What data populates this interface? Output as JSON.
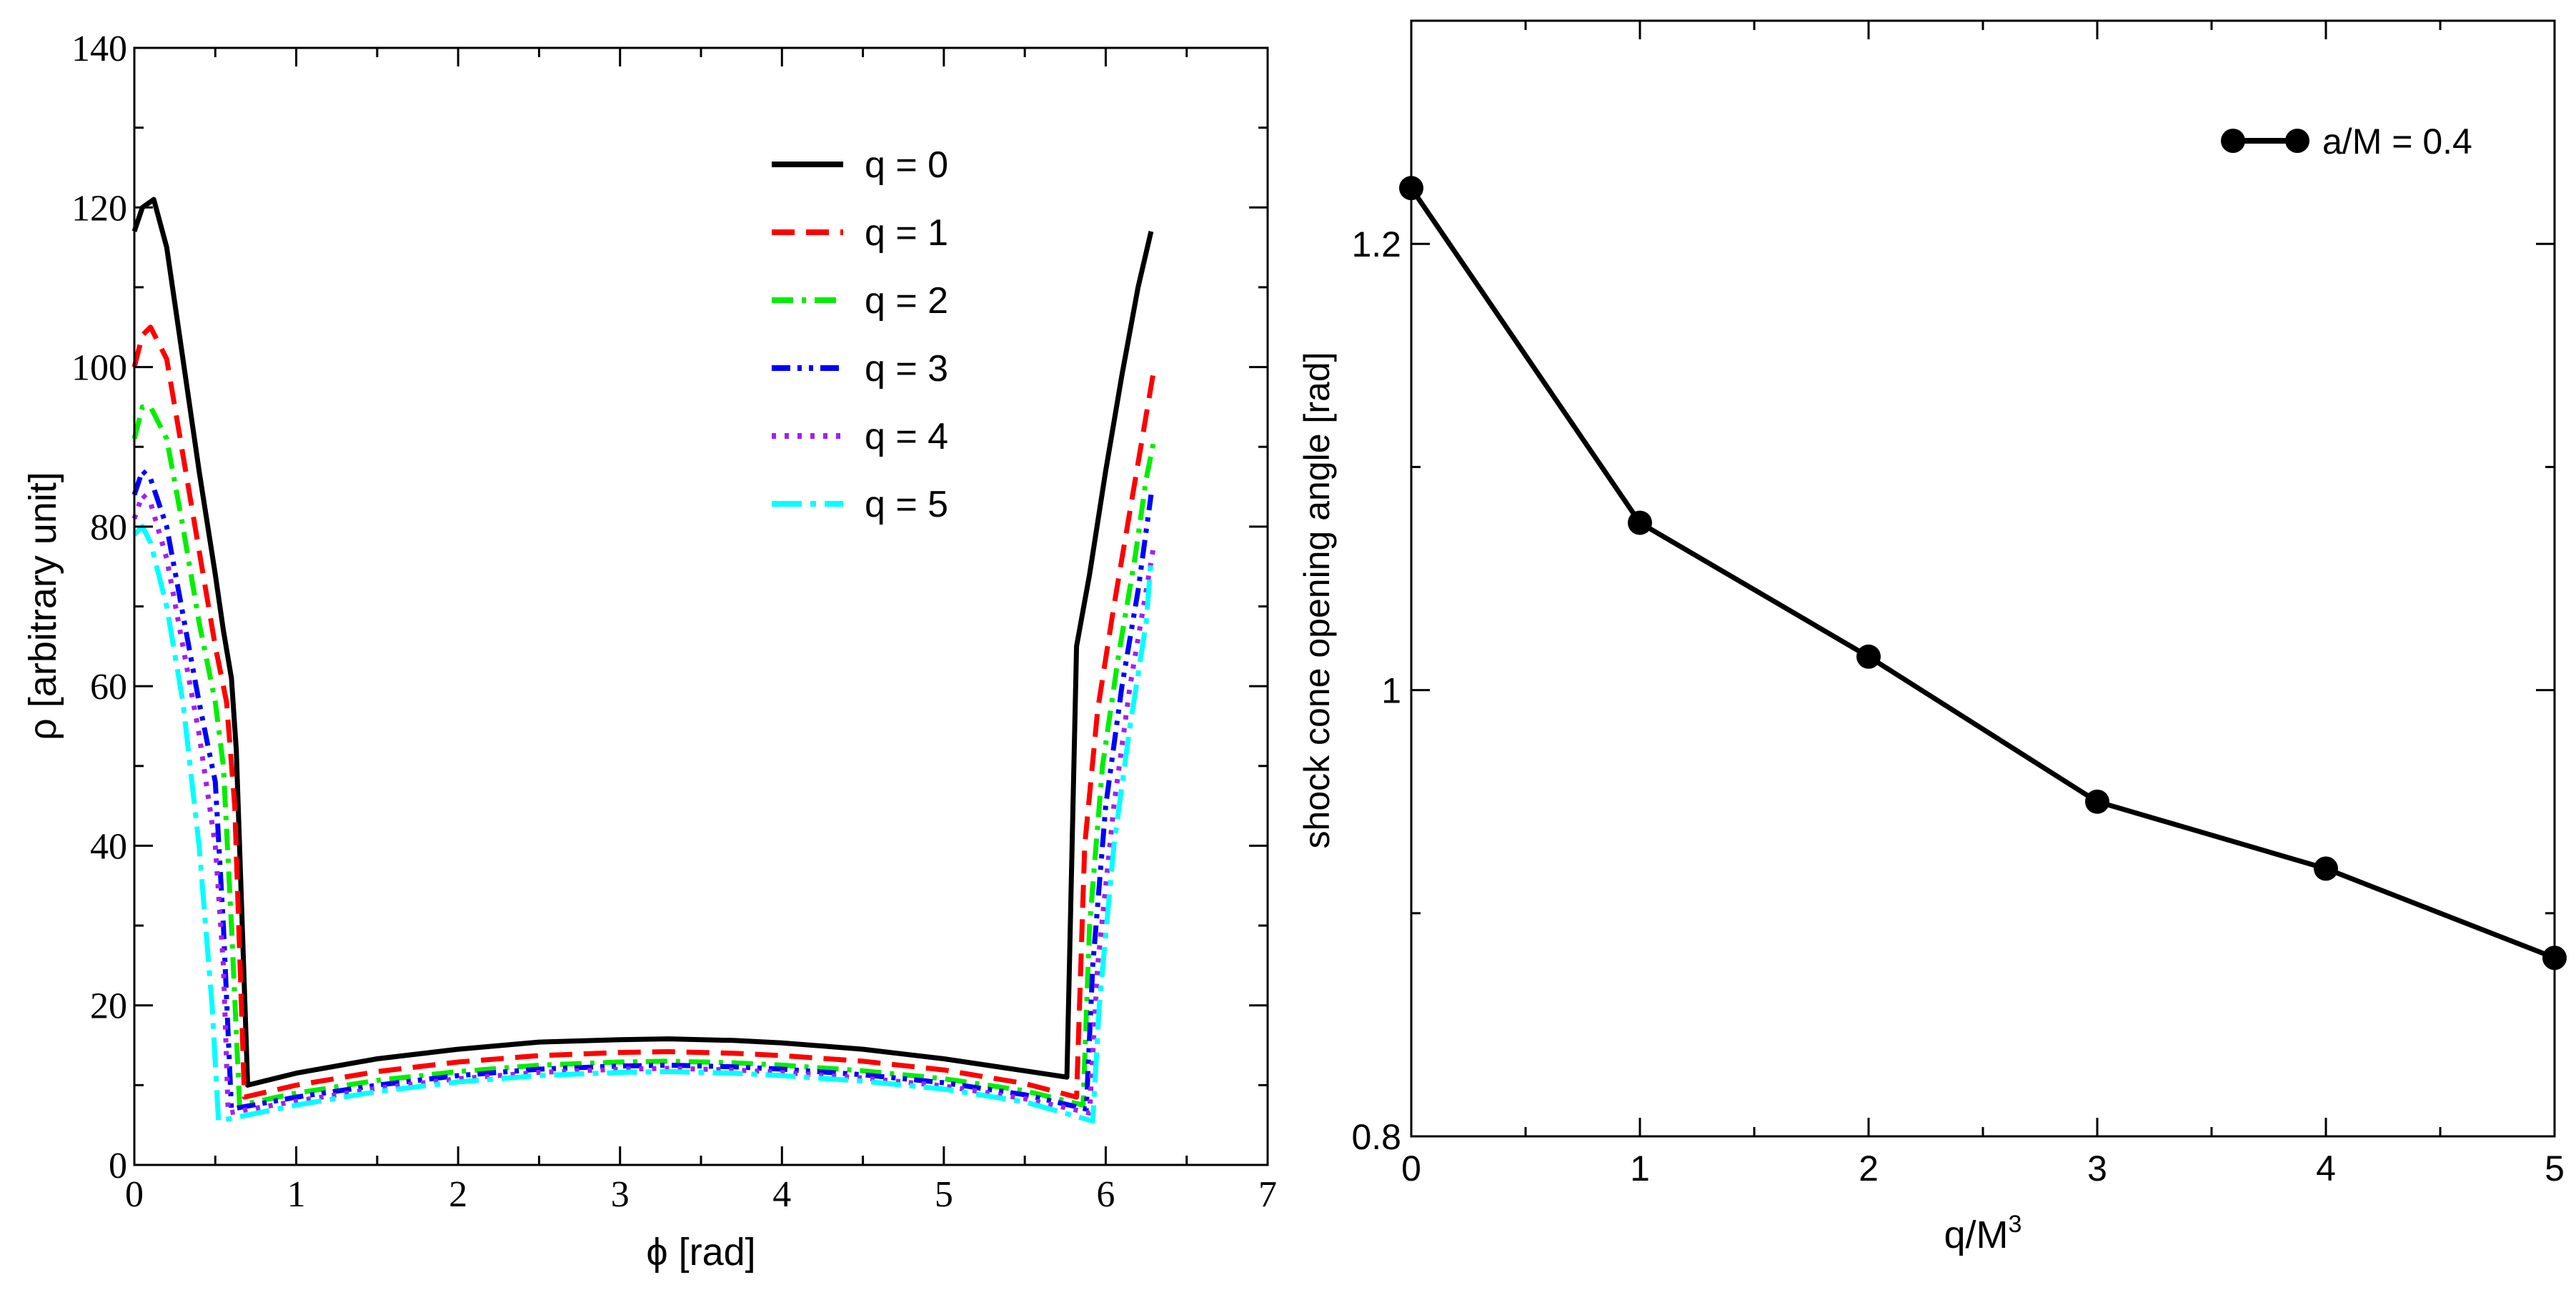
{
  "chart_data": [
    {
      "type": "line",
      "xlabel": "ϕ [rad]",
      "ylabel": "ρ [arbitrary unit]",
      "xlim": [
        0,
        7
      ],
      "ylim": [
        0,
        140
      ],
      "xticks": [
        0,
        1,
        2,
        3,
        4,
        5,
        6,
        7
      ],
      "yticks": [
        0,
        20,
        40,
        60,
        80,
        100,
        120,
        140
      ],
      "legend_position": "top-right",
      "series": [
        {
          "name": "q = 0",
          "color": "#000000",
          "dash": "solid",
          "x": [
            0,
            0.05,
            0.12,
            0.2,
            0.3,
            0.4,
            0.5,
            0.55,
            0.6,
            0.63,
            0.7,
            1.0,
            1.5,
            2.0,
            2.5,
            3.0,
            3.3,
            3.7,
            4.0,
            4.5,
            5.0,
            5.5,
            5.76,
            5.82,
            5.9,
            6.0,
            6.1,
            6.2,
            6.28
          ],
          "y": [
            117,
            120,
            121,
            115,
            101,
            87,
            74,
            67,
            61,
            52,
            10,
            11.5,
            13.3,
            14.5,
            15.4,
            15.7,
            15.8,
            15.6,
            15.3,
            14.5,
            13.3,
            11.8,
            11,
            65,
            74,
            87,
            99,
            110,
            117
          ]
        },
        {
          "name": "q = 1",
          "color": "#ff0000",
          "dash": "dashed",
          "x": [
            0,
            0.05,
            0.1,
            0.2,
            0.3,
            0.4,
            0.5,
            0.57,
            0.62,
            0.68,
            1.0,
            1.5,
            2.0,
            2.5,
            3.0,
            3.3,
            3.7,
            4.0,
            4.5,
            5.0,
            5.5,
            5.82,
            5.87,
            5.95,
            6.05,
            6.15,
            6.25,
            6.3
          ],
          "y": [
            100,
            104,
            105,
            101,
            89,
            77,
            65,
            58,
            45,
            8.5,
            10,
            11.7,
            12.9,
            13.7,
            14.1,
            14.2,
            14.0,
            13.7,
            13.0,
            11.9,
            10.2,
            8.5,
            40,
            57,
            70,
            82,
            94,
            100
          ]
        },
        {
          "name": "q = 2",
          "color": "#00ee00",
          "dash": "dashdot",
          "x": [
            0,
            0.05,
            0.1,
            0.2,
            0.3,
            0.4,
            0.5,
            0.55,
            0.6,
            0.65,
            1.0,
            1.5,
            2.0,
            2.5,
            3.0,
            3.3,
            3.7,
            4.0,
            4.5,
            5.0,
            5.5,
            5.86,
            5.9,
            5.98,
            6.08,
            6.18,
            6.25,
            6.3
          ],
          "y": [
            91,
            95,
            95,
            91,
            80,
            68,
            58,
            50,
            30,
            7.5,
            9,
            10.6,
            11.7,
            12.5,
            12.9,
            13.0,
            12.8,
            12.5,
            11.8,
            10.8,
            9.3,
            7.5,
            30,
            50,
            64,
            76,
            86,
            91
          ]
        },
        {
          "name": "q = 3",
          "color": "#0000ff",
          "dash": "dashdotdot",
          "x": [
            0,
            0.05,
            0.1,
            0.2,
            0.3,
            0.4,
            0.5,
            0.55,
            0.6,
            1.0,
            1.5,
            2.0,
            2.5,
            3.0,
            3.3,
            3.7,
            4.0,
            4.5,
            5.0,
            5.5,
            5.88,
            5.92,
            6.0,
            6.1,
            6.2,
            6.28
          ],
          "y": [
            84,
            87,
            86,
            80,
            69,
            58,
            48,
            30,
            7,
            8.5,
            10,
            11.2,
            12,
            12.4,
            12.5,
            12.3,
            12,
            11.3,
            10.3,
            8.8,
            7,
            25,
            45,
            60,
            72,
            84
          ]
        },
        {
          "name": "q = 4",
          "color": "#a020f0",
          "dash": "dotted",
          "x": [
            0,
            0.05,
            0.1,
            0.2,
            0.3,
            0.4,
            0.5,
            0.55,
            0.58,
            1.0,
            1.5,
            2.0,
            2.5,
            3.0,
            3.3,
            3.7,
            4.0,
            4.5,
            5.0,
            5.5,
            5.9,
            5.95,
            6.05,
            6.15,
            6.25,
            6.3
          ],
          "y": [
            81,
            84,
            83,
            76,
            65,
            54,
            40,
            25,
            6.5,
            8,
            9.6,
            10.8,
            11.6,
            12,
            12.1,
            11.9,
            11.6,
            10.9,
            9.9,
            8.3,
            6.5,
            25,
            45,
            60,
            72,
            78
          ]
        },
        {
          "name": "q = 5",
          "color": "#00ffff",
          "dash": "longdashdot",
          "x": [
            0,
            0.05,
            0.1,
            0.2,
            0.3,
            0.4,
            0.48,
            0.52,
            1.0,
            1.5,
            2.0,
            2.5,
            3.0,
            3.3,
            3.7,
            4.0,
            4.5,
            5.0,
            5.5,
            5.92,
            5.96,
            6.05,
            6.15,
            6.25,
            6.28
          ],
          "y": [
            79,
            80,
            78,
            70,
            58,
            40,
            20,
            5.5,
            7.5,
            9.2,
            10.4,
            11.2,
            11.6,
            11.7,
            11.5,
            11.2,
            10.5,
            9.5,
            7.9,
            5.5,
            20,
            40,
            55,
            68,
            76
          ]
        }
      ]
    },
    {
      "type": "line",
      "xlabel": "q/M³",
      "xlabel_base": "q/M",
      "xlabel_sup": "3",
      "ylabel": "shock cone opening angle [rad]",
      "xlim": [
        0,
        5
      ],
      "ylim": [
        0.8,
        1.3
      ],
      "xticks": [
        0,
        1,
        2,
        3,
        4,
        5
      ],
      "yticks": [
        0.8,
        1,
        1.2
      ],
      "ytick_labels": [
        "0.8",
        "1",
        "1.2"
      ],
      "legend_position": "top-right",
      "series": [
        {
          "name": "a/M = 0.4",
          "color": "#000000",
          "marker": "circle",
          "x": [
            0,
            1,
            2,
            3,
            4,
            5
          ],
          "y": [
            1.225,
            1.075,
            1.015,
            0.95,
            0.92,
            0.88
          ]
        }
      ]
    }
  ]
}
